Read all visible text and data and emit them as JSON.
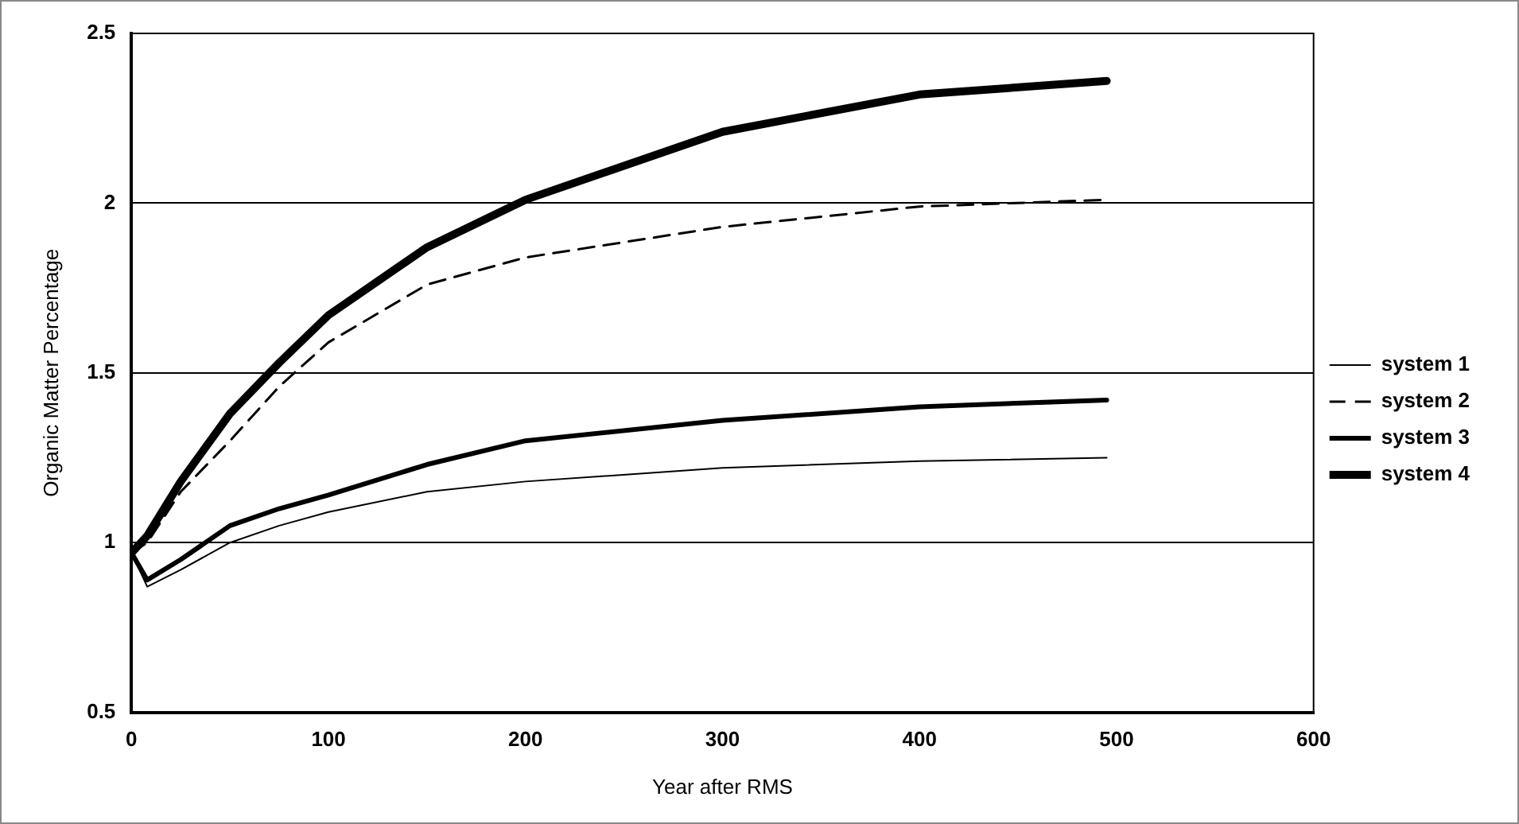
{
  "chart_data": {
    "type": "line",
    "xlabel": "Year after RMS",
    "ylabel": "Organic Matter Percentage",
    "xlim": [
      0,
      600
    ],
    "xticks": [
      0,
      100,
      200,
      300,
      400,
      500,
      600
    ],
    "ylim": [
      0.5,
      2.5
    ],
    "yticks": [
      0.5,
      1,
      1.5,
      2,
      2.5
    ],
    "grid": "y",
    "legend": "right",
    "marker": "none",
    "x": [
      0,
      8,
      25,
      50,
      75,
      100,
      150,
      200,
      300,
      400,
      495
    ],
    "series": [
      {
        "name": "system 1",
        "color": "#000000",
        "values": [
          0.97,
          0.87,
          0.92,
          1.0,
          1.05,
          1.09,
          1.15,
          1.18,
          1.22,
          1.24,
          1.25
        ]
      },
      {
        "name": "system 2",
        "color": "#000000",
        "line_style": "dashed",
        "values": [
          0.97,
          1.0,
          1.15,
          1.3,
          1.46,
          1.59,
          1.76,
          1.84,
          1.93,
          1.99,
          2.01
        ]
      },
      {
        "name": "system 3",
        "color": "#000000",
        "values": [
          0.97,
          0.89,
          0.95,
          1.05,
          1.1,
          1.14,
          1.23,
          1.3,
          1.36,
          1.4,
          1.42
        ]
      },
      {
        "name": "system 4",
        "color": "#000000",
        "values": [
          0.97,
          1.02,
          1.18,
          1.38,
          1.53,
          1.67,
          1.87,
          2.01,
          2.21,
          2.32,
          2.36
        ]
      }
    ]
  }
}
